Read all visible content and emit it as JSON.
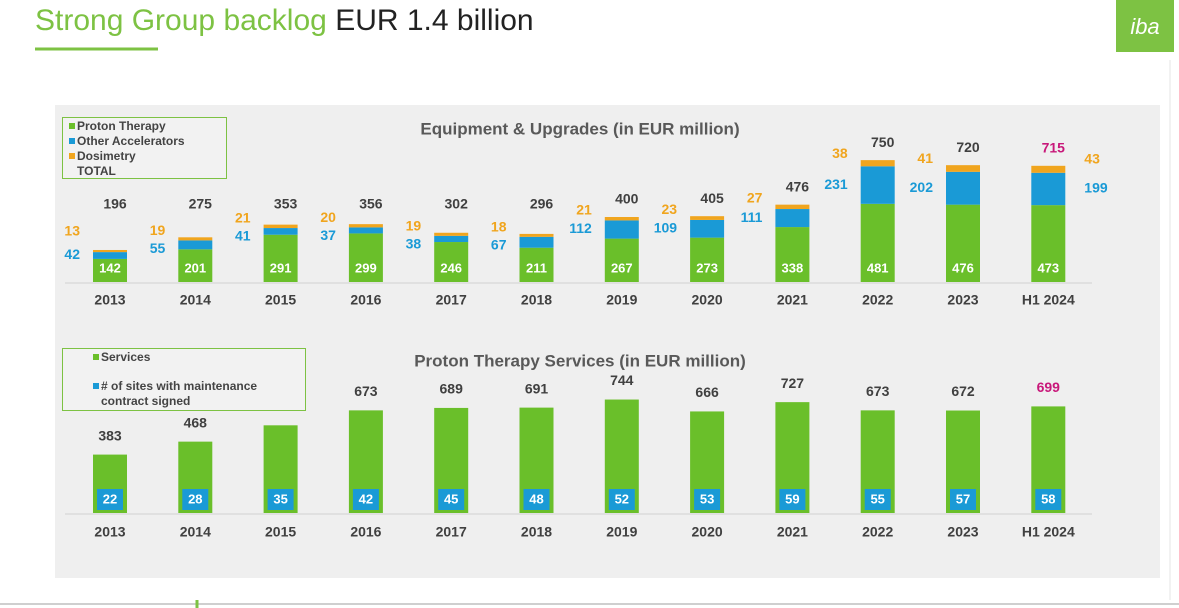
{
  "header": {
    "title": "Strong Group backlog",
    "title_highlight": "EUR 1.4 billion",
    "logo": "iba"
  },
  "chart_data": [
    {
      "type": "stacked-bar",
      "title": "Equipment & Upgrades (in EUR million)",
      "categories": [
        "2013",
        "2014",
        "2015",
        "2016",
        "2017",
        "2018",
        "2019",
        "2020",
        "2021",
        "2022",
        "2023",
        "H1 2024"
      ],
      "series": [
        {
          "name": "Proton Therapy",
          "color": "#6abf2a",
          "values": [
            142,
            201,
            291,
            299,
            246,
            211,
            267,
            273,
            338,
            481,
            476,
            473
          ]
        },
        {
          "name": "Other Accelerators",
          "color": "#1a9ad6",
          "values": [
            42,
            55,
            41,
            37,
            38,
            67,
            112,
            109,
            111,
            231,
            202,
            199
          ]
        },
        {
          "name": "Dosimetry",
          "color": "#f0a51e",
          "values": [
            13,
            19,
            21,
            20,
            19,
            18,
            21,
            23,
            27,
            38,
            41,
            43
          ]
        }
      ],
      "totals": {
        "name": "TOTAL",
        "color": "#404040",
        "values": [
          196,
          275,
          353,
          356,
          302,
          296,
          400,
          405,
          476,
          750,
          720,
          715
        ]
      },
      "highlight_color": "#c8187a",
      "ylim": [
        0,
        800
      ]
    },
    {
      "type": "bar",
      "title": "Proton Therapy Services (in EUR million)",
      "categories": [
        "2013",
        "2014",
        "2015",
        "2016",
        "2017",
        "2018",
        "2019",
        "2020",
        "2021",
        "2022",
        "2023",
        "H1 2024"
      ],
      "series": [
        {
          "name": "Services",
          "color": "#6abf2a",
          "values": [
            383,
            468,
            575,
            673,
            689,
            691,
            744,
            666,
            727,
            673,
            672,
            699
          ]
        }
      ],
      "sites": {
        "name": "# of sites with maintenance contract signed",
        "color": "#1a9ad6",
        "values": [
          22,
          28,
          35,
          42,
          45,
          48,
          52,
          53,
          59,
          55,
          57,
          58
        ]
      },
      "highlight_color": "#c8187a",
      "ylim": [
        0,
        800
      ]
    }
  ]
}
